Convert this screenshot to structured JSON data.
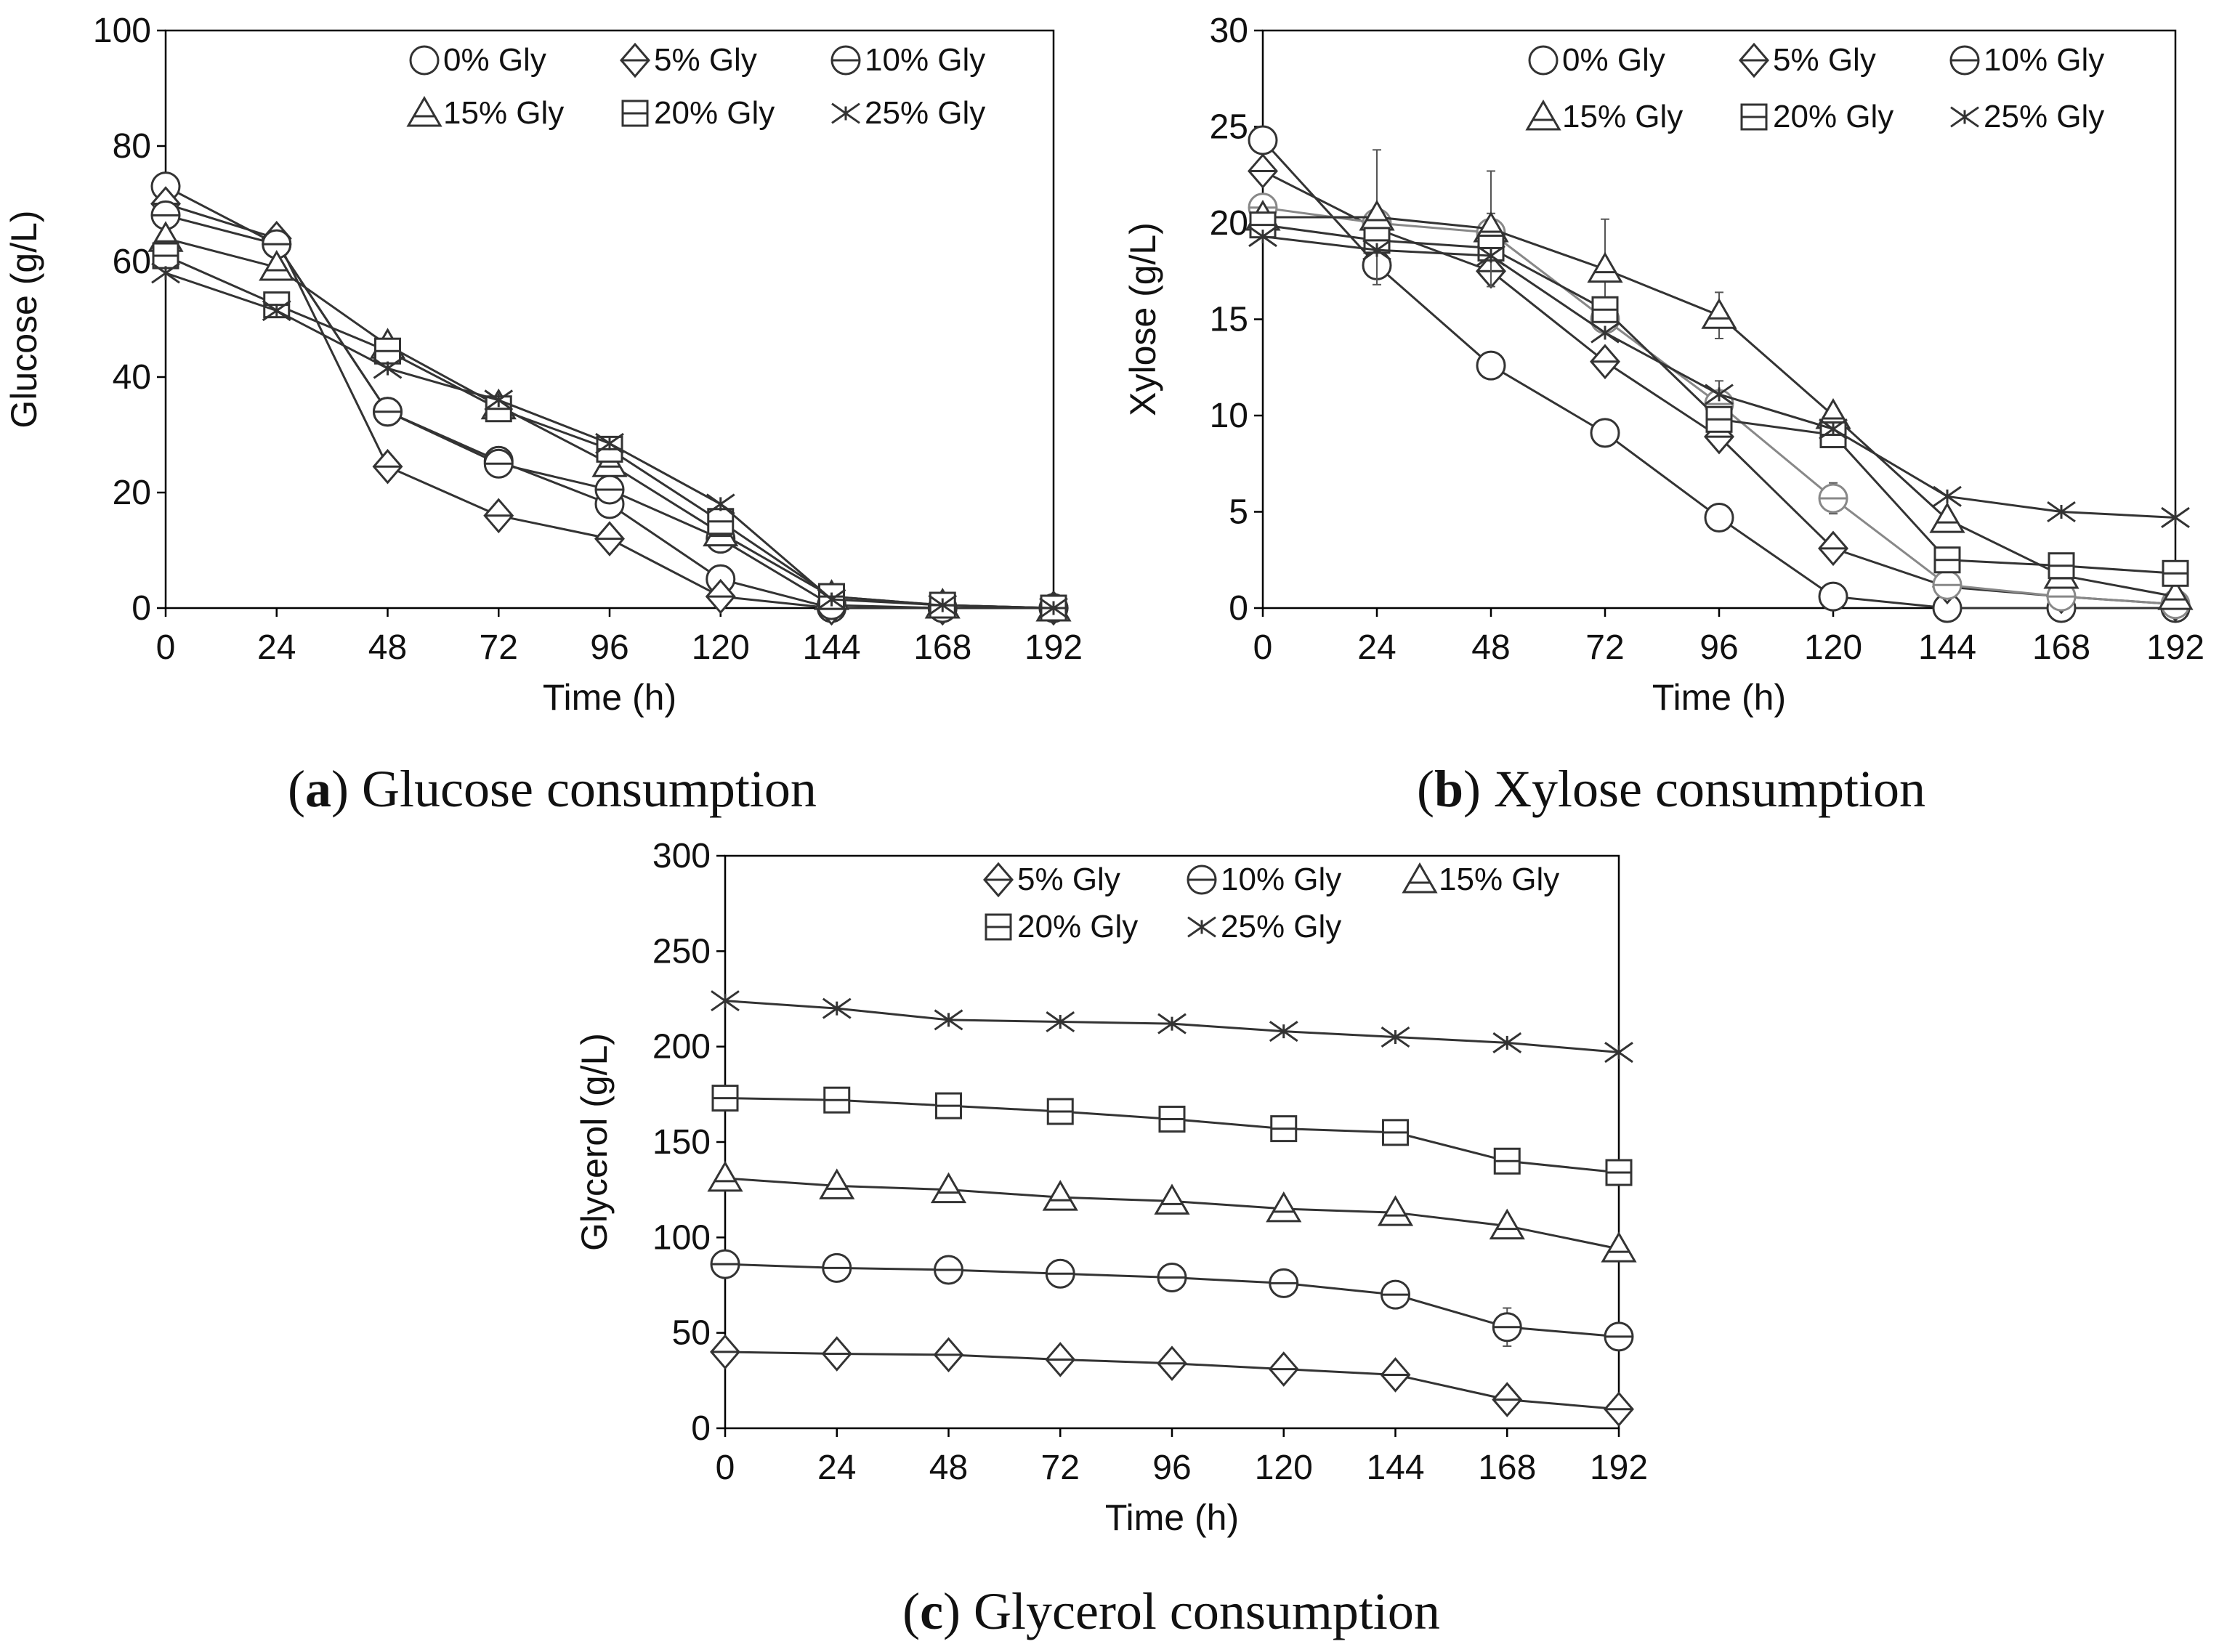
{
  "chart_data": [
    {
      "type": "line",
      "panel": "a",
      "caption": {
        "letter": "a",
        "text": "Glucose consumption"
      },
      "xlabel": "Time (h)",
      "ylabel": "Glucose (g/L)",
      "x": [
        0,
        24,
        48,
        72,
        96,
        120,
        144,
        168,
        192
      ],
      "xticks": [
        0,
        24,
        48,
        72,
        96,
        120,
        144,
        168,
        192
      ],
      "xlim": [
        0,
        192
      ],
      "ylim": [
        0,
        100
      ],
      "yticks": [
        0,
        20,
        40,
        60,
        80,
        100
      ],
      "grid": false,
      "legend_position": "top-right",
      "series": [
        {
          "name": "0% Gly",
          "marker": "circle",
          "values": [
            73,
            63,
            34,
            25.5,
            18,
            5,
            0,
            0,
            0
          ]
        },
        {
          "name": "5% Gly",
          "marker": "diamond",
          "values": [
            70,
            64,
            24.5,
            16,
            12,
            2,
            0,
            0,
            0
          ]
        },
        {
          "name": "10% Gly",
          "marker": "circle-bar",
          "values": [
            68,
            63,
            34,
            25,
            20.5,
            12,
            0.5,
            0,
            0
          ]
        },
        {
          "name": "15% Gly",
          "marker": "triangle",
          "values": [
            64,
            59,
            45.5,
            35,
            25,
            13,
            2,
            0.5,
            0
          ]
        },
        {
          "name": "20% Gly",
          "marker": "square-bar",
          "values": [
            61,
            52.5,
            44.5,
            34.5,
            27.5,
            15,
            2,
            0.5,
            0
          ]
        },
        {
          "name": "25% Gly",
          "marker": "star",
          "values": [
            58,
            51.5,
            41.5,
            36,
            28.5,
            18,
            1.5,
            0.5,
            0
          ]
        }
      ]
    },
    {
      "type": "line",
      "panel": "b",
      "caption": {
        "letter": "b",
        "text": "Xylose consumption"
      },
      "xlabel": "Time (h)",
      "ylabel": "Xylose (g/L)",
      "x": [
        0,
        24,
        48,
        72,
        96,
        120,
        144,
        168,
        192
      ],
      "xticks": [
        0,
        24,
        48,
        72,
        96,
        120,
        144,
        168,
        192
      ],
      "xlim": [
        0,
        192
      ],
      "ylim": [
        0,
        30
      ],
      "yticks": [
        0,
        5,
        10,
        15,
        20,
        25,
        30
      ],
      "grid": false,
      "legend_position": "top-right",
      "series": [
        {
          "name": "0% Gly",
          "marker": "circle",
          "values": [
            24.3,
            17.8,
            12.6,
            9.1,
            4.7,
            0.6,
            0.0,
            0.0,
            0.0
          ]
        },
        {
          "name": "5% Gly",
          "marker": "diamond",
          "values": [
            22.7,
            19.7,
            17.5,
            12.8,
            8.9,
            3.1,
            1.1,
            0.6,
            0.2
          ]
        },
        {
          "name": "10% Gly",
          "marker": "circle-bar",
          "values": [
            20.8,
            20.0,
            19.5,
            15.0,
            10.6,
            5.7,
            1.2,
            0.6,
            0.2
          ],
          "errors": [
            0.3,
            0.5,
            1.0,
            0.6,
            1.2,
            0.8,
            0.3,
            0.2,
            0.1
          ],
          "lighter": true
        },
        {
          "name": "15% Gly",
          "marker": "triangle",
          "values": [
            20.3,
            20.3,
            19.7,
            17.6,
            15.2,
            10.0,
            4.6,
            1.7,
            0.6
          ],
          "errors": [
            0.3,
            3.5,
            3.0,
            2.6,
            1.2,
            0.5,
            0.4,
            0.3,
            0.2
          ]
        },
        {
          "name": "20% Gly",
          "marker": "square-bar",
          "values": [
            19.9,
            19.1,
            18.7,
            15.5,
            9.8,
            9.0,
            2.5,
            2.2,
            1.8
          ]
        },
        {
          "name": "25% Gly",
          "marker": "star",
          "values": [
            19.3,
            18.6,
            18.3,
            14.3,
            11.1,
            9.3,
            5.8,
            5.0,
            4.7
          ]
        }
      ]
    },
    {
      "type": "line",
      "panel": "c",
      "caption": {
        "letter": "c",
        "text": "Glycerol consumption"
      },
      "xlabel": "Time (h)",
      "ylabel": "Glycerol (g/L)",
      "x": [
        0,
        24,
        48,
        72,
        96,
        120,
        144,
        168,
        192
      ],
      "xticks": [
        0,
        24,
        48,
        72,
        96,
        120,
        144,
        168,
        192
      ],
      "xlim": [
        0,
        192
      ],
      "ylim": [
        0,
        300
      ],
      "yticks": [
        0,
        50,
        100,
        150,
        200,
        250,
        300
      ],
      "grid": false,
      "legend_position": "top-right",
      "series": [
        {
          "name": "5% Gly",
          "marker": "diamond",
          "values": [
            40,
            39,
            38.5,
            36,
            34,
            31,
            28,
            15,
            10
          ]
        },
        {
          "name": "10% Gly",
          "marker": "circle-bar",
          "values": [
            86,
            84,
            83,
            81,
            79,
            76,
            70,
            53,
            48
          ],
          "errors": [
            2,
            2,
            2,
            3,
            2,
            2,
            3,
            10,
            2
          ]
        },
        {
          "name": "15% Gly",
          "marker": "triangle",
          "values": [
            131,
            127,
            125,
            121,
            119,
            115,
            113,
            106,
            94
          ],
          "errors": [
            2,
            4,
            3,
            3,
            3,
            3,
            3,
            3,
            3
          ]
        },
        {
          "name": "20% Gly",
          "marker": "square-bar",
          "values": [
            173,
            172,
            169,
            166,
            162,
            157,
            155,
            140,
            134
          ],
          "errors": [
            2,
            3,
            5,
            5,
            5,
            3,
            3,
            3,
            3
          ]
        },
        {
          "name": "25% Gly",
          "marker": "star",
          "values": [
            224,
            220,
            214,
            213,
            212,
            208,
            205,
            202,
            197
          ]
        }
      ]
    }
  ]
}
